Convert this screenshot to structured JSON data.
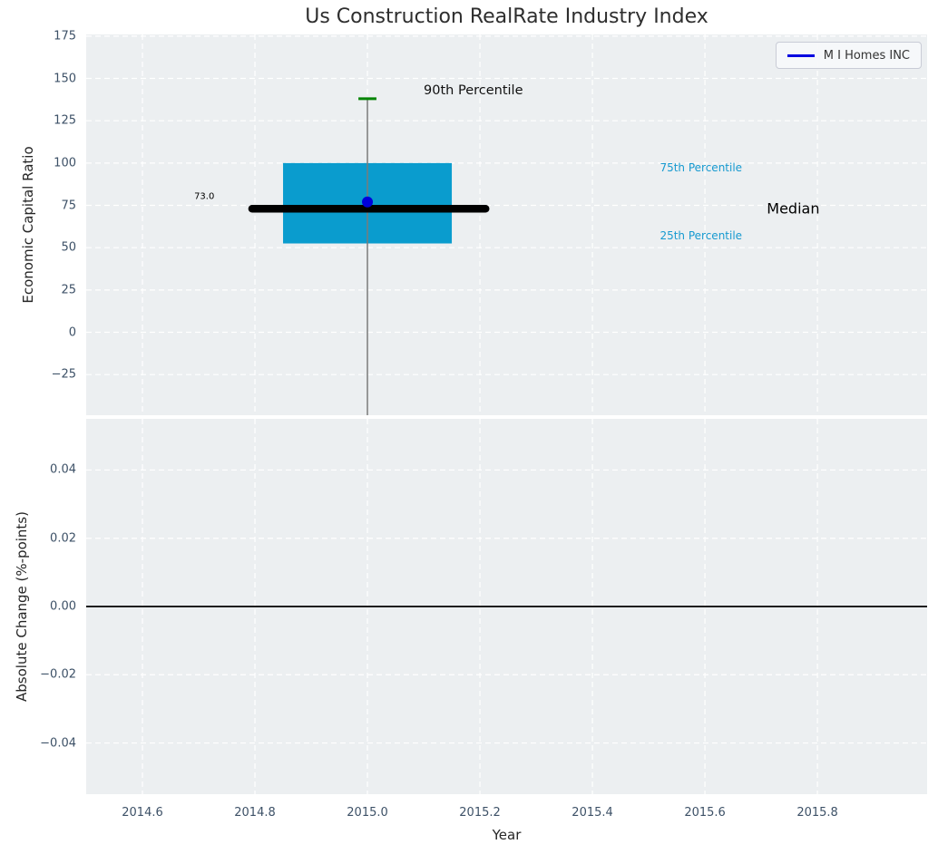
{
  "title": "Us Construction RealRate Industry Index",
  "legend": {
    "label": "M I Homes INC"
  },
  "colors": {
    "figure_bg": "#ffffff",
    "plot_bg": "#eceff1",
    "grid": "#ffffff",
    "box_fill": "#0a9cce",
    "median_line": "#000000",
    "company_marker": "#0000dd",
    "p90_cap": "#048404",
    "whisker": "#7a7a7a",
    "legend_line": "#0000e0",
    "tick_label": "#3d5167",
    "text_dark": "#262626",
    "percentile_label": "#179ad0",
    "zero_line": "#000000"
  },
  "x_axis": {
    "label": "Year",
    "lim": [
      2014.5,
      2015.995
    ],
    "ticks": [
      {
        "v": 2014.6,
        "label": "2014.6"
      },
      {
        "v": 2014.8,
        "label": "2014.8"
      },
      {
        "v": 2015.0,
        "label": "2015.0"
      },
      {
        "v": 2015.2,
        "label": "2015.2"
      },
      {
        "v": 2015.4,
        "label": "2015.4"
      },
      {
        "v": 2015.6,
        "label": "2015.6"
      },
      {
        "v": 2015.8,
        "label": "2015.8"
      }
    ]
  },
  "chart_data": [
    {
      "type": "box",
      "name": "industry-distribution",
      "ylabel": "Economic Capital Ratio",
      "ylim": [
        -49,
        176
      ],
      "yticks": [
        {
          "v": 175,
          "label": "175"
        },
        {
          "v": 150,
          "label": "150"
        },
        {
          "v": 125,
          "label": "125"
        },
        {
          "v": 100,
          "label": "100"
        },
        {
          "v": 75,
          "label": "75"
        },
        {
          "v": 50,
          "label": "50"
        },
        {
          "v": 25,
          "label": "25"
        },
        {
          "v": 0,
          "label": "0"
        },
        {
          "v": -25,
          "label": "−25"
        }
      ],
      "box": {
        "x_center": 2015.0,
        "x_left": 2014.85,
        "x_right": 2015.15,
        "q25": 52.5,
        "q75": 100,
        "median": 73.0,
        "median_x_left": 2014.795,
        "median_x_right": 2015.21,
        "p90": 138,
        "p90_cap_x_left": 2014.984,
        "p90_cap_x_right": 2015.016,
        "whisker_extends_below_axis": true
      },
      "company_point": {
        "series": "M I Homes INC",
        "x": 2015.0,
        "y": 77
      },
      "annotations": [
        {
          "name": "annotation-90th-percentile",
          "text": "90th Percentile",
          "x": 2015.1,
          "y": 143,
          "size": 14.5,
          "color": "#111111",
          "ha": "left"
        },
        {
          "name": "annotation-median-value",
          "text": "73.0",
          "x": 2014.71,
          "y": 80,
          "size": 10,
          "color": "#000000",
          "ha": "center"
        },
        {
          "name": "annotation-75th-percentile",
          "text": "75th Percentile",
          "x": 2015.52,
          "y": 97,
          "size": 12,
          "color": "#179ad0",
          "ha": "left"
        },
        {
          "name": "annotation-median",
          "text": "Median",
          "x": 2015.71,
          "y": 73,
          "size": 16,
          "color": "#000000",
          "ha": "left"
        },
        {
          "name": "annotation-25th-percentile",
          "text": "25th Percentile",
          "x": 2015.52,
          "y": 57,
          "size": 12,
          "color": "#179ad0",
          "ha": "left"
        }
      ]
    },
    {
      "type": "line",
      "name": "absolute-change",
      "ylabel": "Absolute Change (%-points)",
      "ylim": [
        -0.055,
        0.055
      ],
      "yticks": [
        {
          "v": 0.04,
          "label": "0.04"
        },
        {
          "v": 0.02,
          "label": "0.02"
        },
        {
          "v": 0.0,
          "label": "0.00"
        },
        {
          "v": -0.02,
          "label": "−0.02"
        },
        {
          "v": -0.04,
          "label": "−0.04"
        }
      ],
      "zero_line_y": 0.0,
      "series": []
    }
  ]
}
